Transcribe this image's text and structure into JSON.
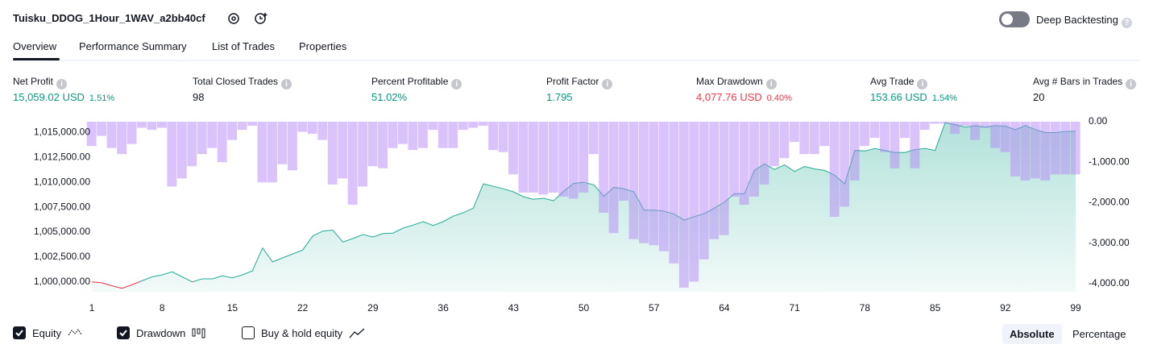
{
  "header": {
    "title": "Tuisku_DDOG_1Hour_1WAV_a2bb40cf",
    "deep_backtesting": "Deep Backtesting"
  },
  "tabs": [
    "Overview",
    "Performance Summary",
    "List of Trades",
    "Properties"
  ],
  "metrics": [
    {
      "label": "Net Profit",
      "value": "15,059.02 USD",
      "extra": "1.51%",
      "color": "#089981"
    },
    {
      "label": "Total Closed Trades",
      "value": "98",
      "color": "#131722"
    },
    {
      "label": "Percent Profitable",
      "value": "51.02%",
      "color": "#089981"
    },
    {
      "label": "Profit Factor",
      "value": "1.795",
      "color": "#089981"
    },
    {
      "label": "Max Drawdown",
      "value": "4,077.76 USD",
      "extra": "0.40%",
      "color": "#f23645"
    },
    {
      "label": "Avg Trade",
      "value": "153.66 USD",
      "extra": "1.54%",
      "color": "#089981"
    },
    {
      "label": "Avg # Bars in Trades",
      "value": "20",
      "color": "#131722"
    }
  ],
  "chart_data": {
    "type": "equity_drawdown",
    "x": [
      1,
      2,
      3,
      4,
      5,
      6,
      7,
      8,
      9,
      10,
      11,
      12,
      13,
      14,
      15,
      16,
      17,
      18,
      19,
      20,
      21,
      22,
      23,
      24,
      25,
      26,
      27,
      28,
      29,
      30,
      31,
      32,
      33,
      34,
      35,
      36,
      37,
      38,
      39,
      40,
      41,
      42,
      43,
      44,
      45,
      46,
      47,
      48,
      49,
      50,
      51,
      52,
      53,
      54,
      55,
      56,
      57,
      58,
      59,
      60,
      61,
      62,
      63,
      64,
      65,
      66,
      67,
      68,
      69,
      70,
      71,
      72,
      73,
      74,
      75,
      76,
      77,
      78,
      79,
      80,
      81,
      82,
      83,
      84,
      85,
      86,
      87,
      88,
      89,
      90,
      91,
      92,
      93,
      94,
      95,
      96,
      97,
      98,
      99
    ],
    "series": [
      {
        "name": "Equity",
        "color": "#22ab94",
        "below_color": "#f23645",
        "values": [
          1000000,
          999900,
          999600,
          999350,
          999700,
          1000100,
          1000500,
          1000700,
          1001000,
          1000500,
          1000000,
          1000300,
          1000300,
          1000600,
          1000400,
          1000700,
          1001100,
          1003400,
          1002000,
          1002400,
          1002800,
          1003200,
          1004600,
          1005100,
          1005200,
          1004000,
          1004350,
          1004750,
          1004500,
          1004850,
          1004900,
          1005400,
          1005700,
          1006050,
          1005650,
          1006050,
          1006600,
          1006950,
          1007400,
          1009850,
          1009600,
          1009350,
          1009050,
          1008550,
          1008300,
          1008400,
          1008150,
          1009100,
          1009900,
          1010000,
          1009750,
          1008600,
          1009500,
          1009350,
          1009050,
          1007200,
          1007200,
          1007100,
          1006800,
          1006200,
          1006550,
          1006850,
          1007400,
          1008000,
          1008850,
          1008850,
          1011200,
          1011850,
          1011300,
          1011750,
          1011100,
          1011600,
          1011350,
          1011200,
          1010700,
          1009850,
          1013200,
          1013150,
          1013400,
          1013200,
          1013000,
          1013000,
          1013300,
          1013400,
          1013200,
          1016000,
          1015800,
          1015550,
          1015700,
          1015550,
          1015700,
          1015650,
          1015300,
          1015700,
          1015300,
          1015000,
          1015000,
          1015100,
          1015150
        ]
      },
      {
        "name": "Drawdown",
        "color": "#b388f5",
        "axis": "y2",
        "values": [
          -600,
          -350,
          -650,
          -800,
          -550,
          -150,
          -200,
          -150,
          -1600,
          -1400,
          -1100,
          -800,
          -650,
          -1000,
          -450,
          -200,
          -100,
          -1500,
          -1500,
          -1050,
          -1200,
          -250,
          -300,
          -450,
          -1550,
          -1400,
          -2050,
          -1600,
          -1100,
          -1150,
          -650,
          -550,
          -700,
          -650,
          -200,
          -650,
          -650,
          -200,
          -150,
          -100,
          -700,
          -750,
          -1300,
          -1750,
          -1750,
          -1800,
          -1750,
          -1850,
          -1900,
          -1750,
          -800,
          -2250,
          -2750,
          -1950,
          -2900,
          -3000,
          -3050,
          -3200,
          -3500,
          -4100,
          -3950,
          -3400,
          -2900,
          -2800,
          -1850,
          -2050,
          -1850,
          -1550,
          -1100,
          -900,
          -500,
          -800,
          -800,
          -600,
          -2350,
          -2100,
          -1450,
          -600,
          -400,
          -750,
          -1150,
          -400,
          -1150,
          -200,
          -50,
          -50,
          -300,
          -100,
          -450,
          -150,
          -650,
          -750,
          -1350,
          -1450,
          -1400,
          -1450,
          -1300,
          -1300,
          -1300
        ]
      }
    ],
    "xlim": [
      1,
      99
    ],
    "xticks": [
      1,
      8,
      15,
      22,
      29,
      36,
      43,
      50,
      57,
      64,
      71,
      78,
      85,
      92,
      99
    ],
    "ylim": [
      999000,
      1016500
    ],
    "yticks": [
      {
        "value": 1000000,
        "label": "1,000,000.00"
      },
      {
        "value": 1002500,
        "label": "1,002,500.00"
      },
      {
        "value": 1005000,
        "label": "1,005,000.00"
      },
      {
        "value": 1007500,
        "label": "1,007,500.00"
      },
      {
        "value": 1010000,
        "label": "1,010,000.00"
      },
      {
        "value": 1012500,
        "label": "1,012,500.00"
      },
      {
        "value": 1015000,
        "label": "1,015,000.00"
      }
    ],
    "y2lim": [
      -4200,
      100
    ],
    "y2ticks": [
      {
        "value": 0,
        "label": "0.00"
      },
      {
        "value": -1000,
        "label": "-1,000.00"
      },
      {
        "value": -2000,
        "label": "-2,000.00"
      },
      {
        "value": -3000,
        "label": "-3,000.00"
      },
      {
        "value": -4000,
        "label": "-4,000.00"
      }
    ]
  },
  "legend_extra": "Buy & hold equity",
  "scale_buttons": [
    "Absolute",
    "Percentage"
  ]
}
